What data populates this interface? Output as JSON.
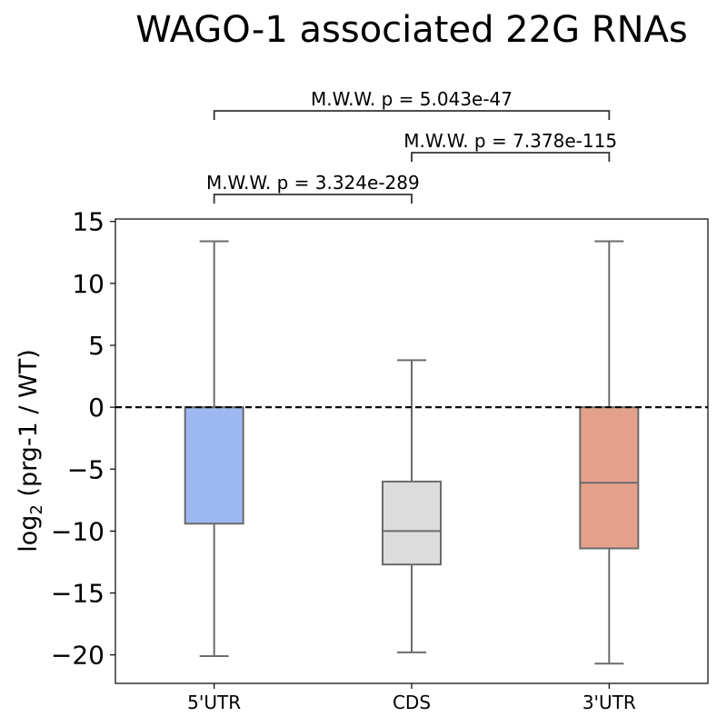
{
  "chart_data": {
    "type": "box",
    "title": "WAGO-1 associated 22G RNAs",
    "ylabel": {
      "prefix": "log",
      "subscript": "2",
      "suffix": " (prg-1 / WT)"
    },
    "ylim": [
      -22.3,
      15.2
    ],
    "yticks": [
      15,
      10,
      5,
      0,
      -5,
      -10,
      -15,
      -20
    ],
    "ytick_labels": [
      "15",
      "10",
      "5",
      "0",
      "−5",
      "−10",
      "−15",
      "−20"
    ],
    "reference_line": {
      "y": 0,
      "style": "dashed",
      "color": "#000000"
    },
    "grid": false,
    "categories": [
      "5'UTR",
      "CDS",
      "3'UTR"
    ],
    "boxes": [
      {
        "category": "5'UTR",
        "whisker_low": -20.1,
        "q1": -9.4,
        "median": 0,
        "q3": 0,
        "whisker_high": 13.4,
        "color": "#9db8f1"
      },
      {
        "category": "CDS",
        "whisker_low": -19.8,
        "q1": -12.7,
        "median": -10.0,
        "q3": -6.0,
        "whisker_high": 3.8,
        "color": "#dcdcdc"
      },
      {
        "category": "3'UTR",
        "whisker_low": -20.7,
        "q1": -11.4,
        "median": -6.1,
        "q3": 0,
        "whisker_high": 13.4,
        "color": "#e4a18a"
      }
    ],
    "annotations": [
      {
        "from": "5'UTR",
        "to": "3'UTR",
        "text": "M.W.W. p = 5.043e-47"
      },
      {
        "from": "CDS",
        "to": "3'UTR",
        "text": "M.W.W. p = 7.378e-115"
      },
      {
        "from": "5'UTR",
        "to": "CDS",
        "text": "M.W.W. p = 3.324e-289"
      }
    ]
  }
}
